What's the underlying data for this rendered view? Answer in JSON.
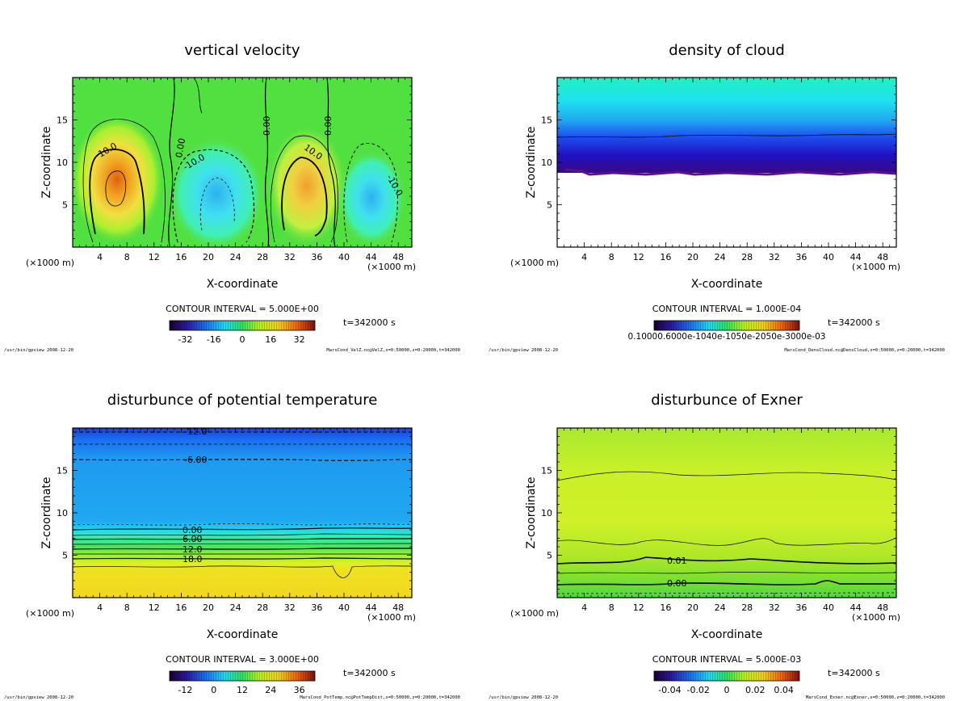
{
  "chart_data": [
    {
      "type": "heatmap",
      "title": "vertical velocity",
      "xlabel": "X-coordinate",
      "ylabel": "Z-coordinate",
      "x_unit": "(×1000 m)",
      "xlim": [
        0,
        50
      ],
      "ylim": [
        0,
        20
      ],
      "x_ticks": [
        "4",
        "8",
        "12",
        "16",
        "20",
        "24",
        "28",
        "32",
        "36",
        "40",
        "44",
        "48"
      ],
      "y_ticks": [
        "5",
        "10",
        "15"
      ],
      "contour_interval": "CONTOUR INTERVAL = 5.000E+00",
      "colorbar_ticks": [
        "-32",
        "-16",
        "0",
        "16",
        "32"
      ],
      "time": "t=342000 s",
      "footer_left": "/usr/bin/gpview  2008-12-20",
      "footer_right": "MarsCond_VelZ.nc@VelZ,x=0:50000,z=0:20000,t=342000",
      "contour_labels": [
        "10.0",
        "0.00",
        "0.00",
        "0.00",
        "-10.0",
        "10.0",
        "-10.0"
      ],
      "cells": [
        {
          "x": 7,
          "z": 7.5,
          "value": 25
        },
        {
          "x": 22,
          "z": 6,
          "value": -15
        },
        {
          "x": 34,
          "z": 7,
          "value": 20
        },
        {
          "x": 44,
          "z": 6,
          "value": -15
        }
      ]
    },
    {
      "type": "heatmap",
      "title": "density of cloud",
      "xlabel": "X-coordinate",
      "ylabel": "Z-coordinate",
      "x_unit": "(×1000 m)",
      "xlim": [
        0,
        50
      ],
      "ylim": [
        0,
        20
      ],
      "x_ticks": [
        "4",
        "8",
        "12",
        "16",
        "20",
        "24",
        "28",
        "32",
        "36",
        "40",
        "44",
        "48"
      ],
      "y_ticks": [
        "5",
        "10",
        "15"
      ],
      "contour_interval": "CONTOUR INTERVAL = 1.000E-04",
      "colorbar_ticks_text": "0.10000.6000e-1040e-1050e-2050e-3000e-03",
      "time": "t=342000 s",
      "footer_left": "/usr/bin/gpview  2008-12-20",
      "footer_right": "MarsCond_DensCloud.nc@DensCloud,x=0:50000,z=0:20000,t=342000"
    },
    {
      "type": "heatmap",
      "title": "disturbunce of potential temperature",
      "xlabel": "X-coordinate",
      "ylabel": "Z-coordinate",
      "x_unit": "(×1000 m)",
      "xlim": [
        0,
        50
      ],
      "ylim": [
        0,
        20
      ],
      "x_ticks": [
        "4",
        "8",
        "12",
        "16",
        "20",
        "24",
        "28",
        "32",
        "36",
        "40",
        "44",
        "48"
      ],
      "y_ticks": [
        "5",
        "10",
        "15"
      ],
      "contour_interval": "CONTOUR INTERVAL = 3.000E+00",
      "colorbar_ticks": [
        "-12",
        "0",
        "12",
        "24",
        "36"
      ],
      "time": "t=342000 s",
      "footer_left": "/usr/bin/gpview  2008-12-20",
      "footer_right": "MarsCond_PotTemp.nc@PotTempDist,x=0:50000,z=0:20000,t=342000",
      "contour_labels": [
        "-12.0",
        "-6.00",
        "0.00",
        "6.00",
        "12.0",
        "18.0"
      ]
    },
    {
      "type": "heatmap",
      "title": "disturbunce of Exner",
      "xlabel": "X-coordinate",
      "ylabel": "Z-coordinate",
      "x_unit": "(×1000 m)",
      "xlim": [
        0,
        50
      ],
      "ylim": [
        0,
        20
      ],
      "x_ticks": [
        "4",
        "8",
        "12",
        "16",
        "20",
        "24",
        "28",
        "32",
        "36",
        "40",
        "44",
        "48"
      ],
      "y_ticks": [
        "5",
        "10",
        "15"
      ],
      "contour_interval": "CONTOUR INTERVAL = 5.000E-03",
      "colorbar_ticks": [
        "-0.04",
        "-0.02",
        "0",
        "0.02",
        "0.04"
      ],
      "time": "t=342000 s",
      "footer_left": "/usr/bin/gpview  2008-12-20",
      "footer_right": "MarsCond_Exner.nc@Exner,x=0:50000,z=0:20000,t=342000",
      "contour_labels": [
        "0.01",
        "0.00"
      ]
    }
  ]
}
